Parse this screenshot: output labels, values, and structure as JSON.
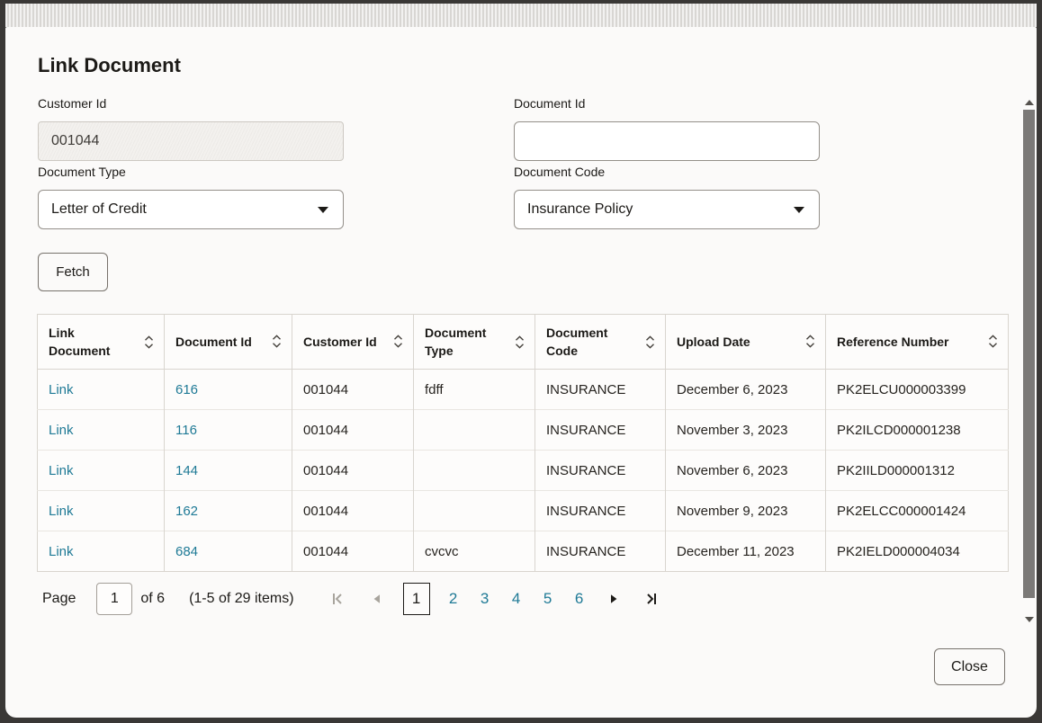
{
  "dialog": {
    "title": "Link Document",
    "fetch_label": "Fetch",
    "close_label": "Close"
  },
  "form": {
    "customer_id": {
      "label": "Customer Id",
      "value": "001044"
    },
    "document_id": {
      "label": "Document Id",
      "value": ""
    },
    "document_type": {
      "label": "Document Type",
      "selected": "Letter of Credit"
    },
    "document_code": {
      "label": "Document Code",
      "selected": "Insurance Policy"
    }
  },
  "table": {
    "columns": [
      "Link Document",
      "Document Id",
      "Customer Id",
      "Document Type",
      "Document Code",
      "Upload Date",
      "Reference Number"
    ],
    "rows": [
      [
        "Link",
        "616",
        "001044",
        "fdff",
        "INSURANCE",
        "December 6, 2023",
        "PK2ELCU000003399"
      ],
      [
        "Link",
        "116",
        "001044",
        "",
        "INSURANCE",
        "November 3, 2023",
        "PK2ILCD000001238"
      ],
      [
        "Link",
        "144",
        "001044",
        "",
        "INSURANCE",
        "November 6, 2023",
        "PK2IILD000001312"
      ],
      [
        "Link",
        "162",
        "001044",
        "",
        "INSURANCE",
        "November 9, 2023",
        "PK2ELCC000001424"
      ],
      [
        "Link",
        "684",
        "001044",
        "cvcvc",
        "INSURANCE",
        "December 11, 2023",
        "PK2IELD000004034"
      ]
    ]
  },
  "pagination": {
    "page_label": "Page",
    "page_input_value": "1",
    "of_label": "of 6",
    "items_summary": "(1-5 of 29 items)",
    "current_page": "1",
    "pages": [
      "1",
      "2",
      "3",
      "4",
      "5",
      "6"
    ]
  },
  "icons": {
    "sort": "sort-arrows-icon",
    "dropdown": "caret-down-icon",
    "first_page": "first-page-icon",
    "previous_page": "previous-page-icon",
    "next_page": "next-page-icon",
    "last_page": "last-page-icon",
    "scroll_up": "scrollbar-up-arrow-icon",
    "scroll_down": "scrollbar-down-arrow-icon"
  },
  "colors": {
    "link": "#1f7a96",
    "text": "#1c1a17",
    "modal_bg": "#fbfaf9",
    "overlay": "#3a3836",
    "table_border": "#d9d5cf",
    "scrollbar_thumb": "#7b7977"
  }
}
